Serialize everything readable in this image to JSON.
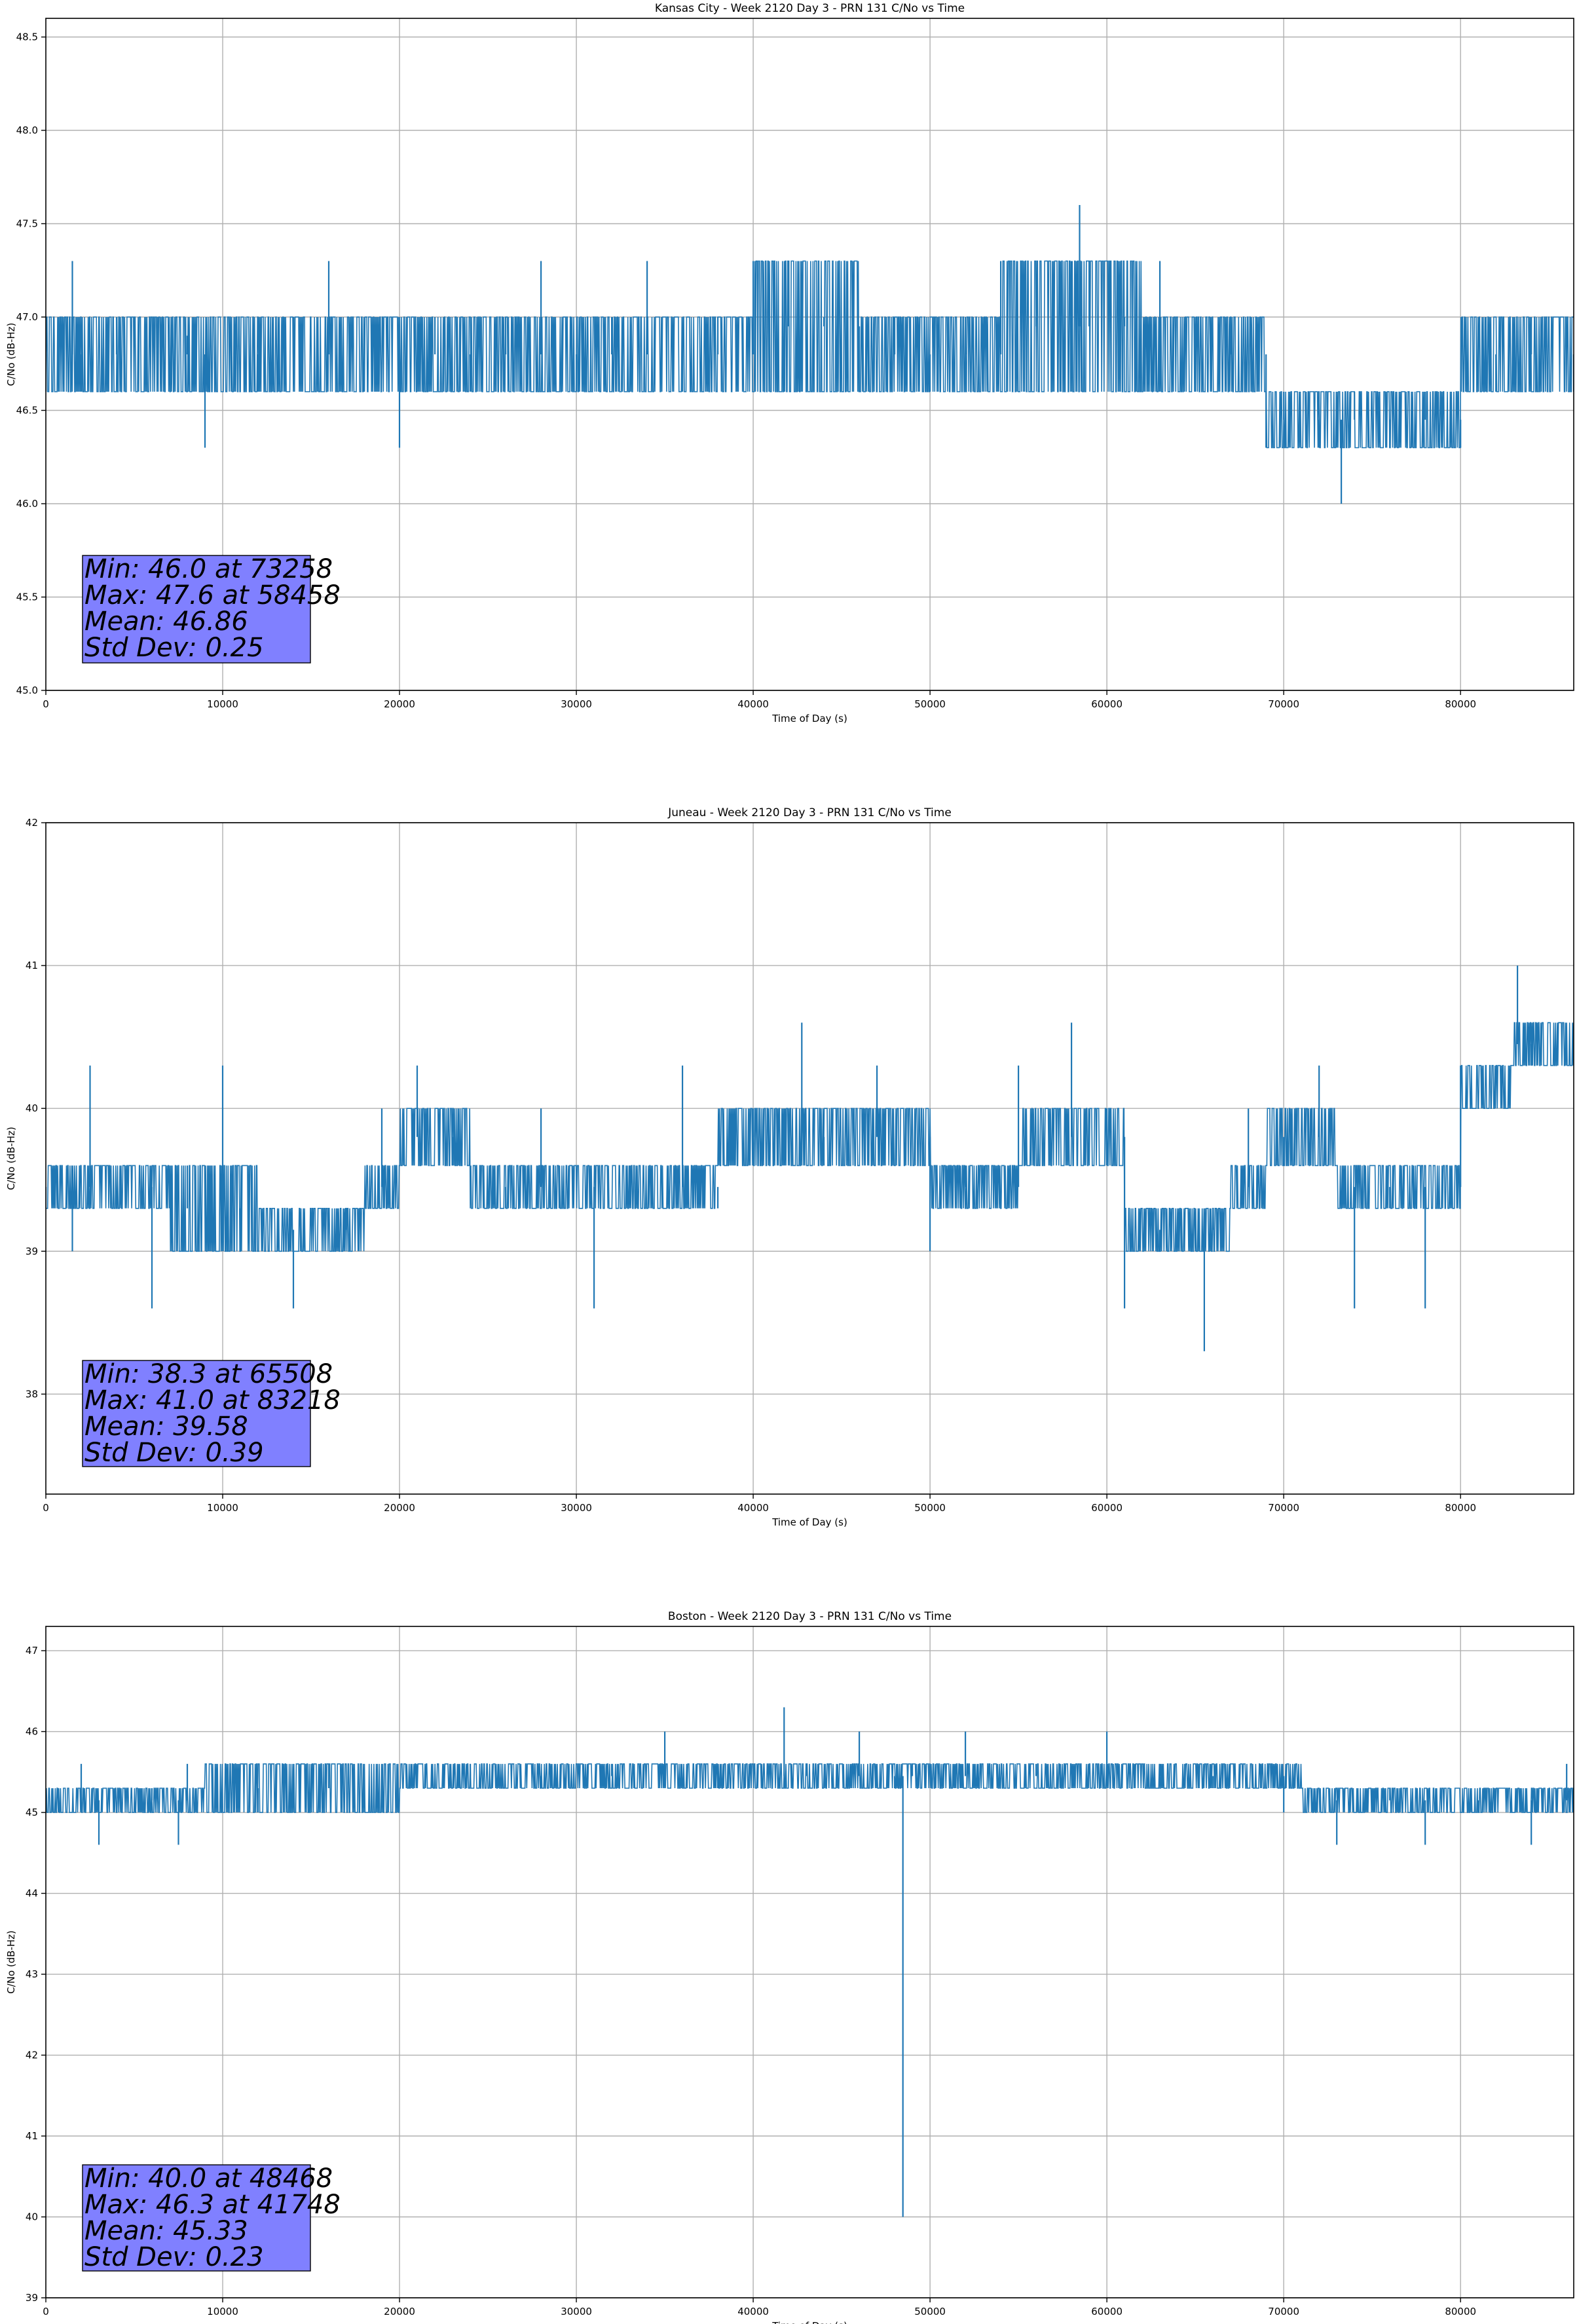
{
  "figure": {
    "colors": {
      "line": "#1f77b4",
      "grid": "#b0b0b0",
      "stats_box": "#8080ff",
      "stats_border": "#000000"
    }
  },
  "chart_data": [
    {
      "type": "line",
      "title": "Kansas City - Week 2120 Day 3 - PRN 131 C/No vs Time",
      "xlabel": "Time of Day (s)",
      "ylabel": "C/No (dB-Hz)",
      "xlim": [
        0,
        86400
      ],
      "ylim": [
        45.0,
        48.6
      ],
      "xticks": [
        0,
        10000,
        20000,
        30000,
        40000,
        50000,
        60000,
        70000,
        80000
      ],
      "xtick_labels": [
        "0",
        "10000",
        "20000",
        "30000",
        "40000",
        "50000",
        "60000",
        "70000",
        "80000"
      ],
      "yticks": [
        45.0,
        45.5,
        46.0,
        46.5,
        47.0,
        47.5,
        48.0,
        48.5
      ],
      "ytick_labels": [
        "45.0",
        "45.5",
        "46.0",
        "46.5",
        "47.0",
        "47.5",
        "48.0",
        "48.5"
      ],
      "grid": true,
      "series": [
        {
          "x": [
            0,
            1500,
            2000,
            4000,
            8000,
            9000,
            12000,
            14000,
            16000,
            18000,
            20000,
            22000,
            24000,
            26000,
            28000,
            30000,
            32000,
            34000,
            36000,
            38000,
            40000,
            42000,
            44000,
            46000,
            48000,
            50000,
            52000,
            54000,
            56000,
            58000,
            58458,
            59000,
            61000,
            63000,
            65000,
            67000,
            69000,
            70000,
            72000,
            73258,
            74000,
            76000,
            78000,
            80000,
            82000,
            84000,
            86400
          ],
          "y": [
            46.6,
            47.3,
            46.6,
            47.0,
            46.9,
            46.3,
            46.6,
            47.0,
            47.3,
            46.6,
            46.3,
            47.0,
            46.6,
            47.0,
            47.3,
            46.6,
            47.0,
            47.3,
            46.6,
            47.0,
            47.3,
            47.3,
            47.0,
            46.6,
            47.0,
            46.6,
            47.0,
            47.3,
            47.0,
            47.3,
            47.6,
            47.3,
            47.0,
            47.3,
            46.6,
            46.9,
            46.3,
            46.6,
            46.3,
            46.0,
            46.6,
            46.3,
            46.6,
            46.3,
            46.6,
            47.0,
            46.6
          ]
        }
      ],
      "band": [
        [
          0,
          46.6,
          47.0
        ],
        [
          22000,
          46.6,
          47.0
        ],
        [
          40000,
          46.6,
          47.3
        ],
        [
          46000,
          46.6,
          47.0
        ],
        [
          54000,
          46.6,
          47.3
        ],
        [
          62000,
          46.6,
          47.0
        ],
        [
          69000,
          46.3,
          46.6
        ],
        [
          78000,
          46.3,
          46.6
        ],
        [
          80000,
          46.6,
          47.0
        ],
        [
          86400,
          46.6,
          47.0
        ]
      ],
      "stats": [
        "Min: 46.0 at 73258",
        "Max: 47.6 at 58458",
        "Mean: 46.86",
        "Std Dev: 0.25"
      ]
    },
    {
      "type": "line",
      "title": "Juneau - Week 2120 Day 3 - PRN 131 C/No vs Time",
      "xlabel": "Time of Day (s)",
      "ylabel": "C/No (dB-Hz)",
      "xlim": [
        0,
        86400
      ],
      "ylim": [
        37.3,
        42.0
      ],
      "xticks": [
        0,
        10000,
        20000,
        30000,
        40000,
        50000,
        60000,
        70000,
        80000
      ],
      "xtick_labels": [
        "0",
        "10000",
        "20000",
        "30000",
        "40000",
        "50000",
        "60000",
        "70000",
        "80000"
      ],
      "yticks": [
        38,
        39,
        40,
        41,
        42
      ],
      "ytick_labels": [
        "38",
        "39",
        "40",
        "41",
        "42"
      ],
      "grid": true,
      "series": [
        {
          "x": [
            0,
            1500,
            2500,
            6000,
            8000,
            10000,
            11000,
            14000,
            17000,
            19000,
            21000,
            23000,
            26000,
            28000,
            31000,
            33000,
            36000,
            38000,
            40000,
            42748,
            44000,
            47000,
            50000,
            52000,
            55000,
            58000,
            60000,
            61000,
            63000,
            65508,
            66000,
            68000,
            70000,
            72000,
            74000,
            76000,
            78000,
            80000,
            83218,
            84000,
            86400
          ],
          "y": [
            39.3,
            39.0,
            40.3,
            38.6,
            39.6,
            40.3,
            39.0,
            38.6,
            39.3,
            40.0,
            40.3,
            39.6,
            39.3,
            40.0,
            38.6,
            39.6,
            40.3,
            39.3,
            40.0,
            40.6,
            39.6,
            40.3,
            39.0,
            39.6,
            40.3,
            40.6,
            40.0,
            38.6,
            39.0,
            38.3,
            39.3,
            40.0,
            39.6,
            40.3,
            38.6,
            39.3,
            38.6,
            40.3,
            41.0,
            40.3,
            40.3
          ]
        }
      ],
      "band": [
        [
          0,
          39.3,
          39.6
        ],
        [
          7000,
          39.0,
          39.6
        ],
        [
          12000,
          39.0,
          39.3
        ],
        [
          15000,
          39.0,
          39.3
        ],
        [
          18000,
          39.3,
          39.6
        ],
        [
          20000,
          39.6,
          40.0
        ],
        [
          24000,
          39.3,
          39.6
        ],
        [
          33000,
          39.3,
          39.6
        ],
        [
          38000,
          39.6,
          40.0
        ],
        [
          48000,
          39.6,
          40.0
        ],
        [
          50000,
          39.3,
          39.6
        ],
        [
          55000,
          39.6,
          40.0
        ],
        [
          61000,
          39.0,
          39.3
        ],
        [
          66000,
          39.0,
          39.3
        ],
        [
          67000,
          39.3,
          39.6
        ],
        [
          69000,
          39.6,
          40.0
        ],
        [
          73000,
          39.3,
          39.6
        ],
        [
          78000,
          39.3,
          39.6
        ],
        [
          80000,
          40.0,
          40.3
        ],
        [
          82000,
          40.0,
          40.3
        ],
        [
          83000,
          40.3,
          40.6
        ],
        [
          86400,
          40.3,
          40.6
        ]
      ],
      "stats": [
        "Min: 38.3 at 65508",
        "Max: 41.0 at 83218",
        "Mean: 39.58",
        "Std Dev: 0.39"
      ]
    },
    {
      "type": "line",
      "title": "Boston - Week 2120 Day 3 - PRN 131 C/No vs Time",
      "xlabel": "Time of Day (s)",
      "ylabel": "C/No (dB-Hz)",
      "xlim": [
        0,
        86400
      ],
      "ylim": [
        39.0,
        47.3
      ],
      "xticks": [
        0,
        10000,
        20000,
        30000,
        40000,
        50000,
        60000,
        70000,
        80000
      ],
      "xtick_labels": [
        "0",
        "10000",
        "20000",
        "30000",
        "40000",
        "50000",
        "60000",
        "70000",
        "80000"
      ],
      "yticks": [
        39,
        40,
        41,
        42,
        43,
        44,
        45,
        46,
        47
      ],
      "ytick_labels": [
        "39",
        "40",
        "41",
        "42",
        "43",
        "44",
        "45",
        "46",
        "47"
      ],
      "grid": true,
      "series": [
        {
          "x": [
            0,
            2000,
            3000,
            6000,
            7500,
            8000,
            12000,
            16000,
            20000,
            24000,
            28000,
            32000,
            35000,
            38000,
            41748,
            43000,
            46000,
            48000,
            48468,
            49000,
            52000,
            56000,
            60000,
            63000,
            66000,
            70000,
            73000,
            76000,
            78000,
            81000,
            84000,
            86000,
            86400
          ],
          "y": [
            45.0,
            45.6,
            44.6,
            45.3,
            44.6,
            45.6,
            45.0,
            45.6,
            45.3,
            45.6,
            45.3,
            45.6,
            46.0,
            45.3,
            46.3,
            45.6,
            46.0,
            45.3,
            40.0,
            45.6,
            46.0,
            45.6,
            46.0,
            45.6,
            45.3,
            45.0,
            44.6,
            45.3,
            44.6,
            45.0,
            44.6,
            45.6,
            45.0
          ]
        }
      ],
      "band": [
        [
          0,
          45.0,
          45.3
        ],
        [
          8000,
          45.0,
          45.3
        ],
        [
          9000,
          45.0,
          45.6
        ],
        [
          20000,
          45.3,
          45.6
        ],
        [
          34000,
          45.3,
          45.6
        ],
        [
          40000,
          45.3,
          45.6
        ],
        [
          52000,
          45.3,
          45.6
        ],
        [
          68000,
          45.3,
          45.6
        ],
        [
          71000,
          45.0,
          45.3
        ],
        [
          86400,
          45.0,
          45.3
        ]
      ],
      "stats": [
        "Min: 40.0 at 48468",
        "Max: 46.3 at 41748",
        "Mean: 45.33",
        "Std Dev: 0.23"
      ]
    }
  ]
}
